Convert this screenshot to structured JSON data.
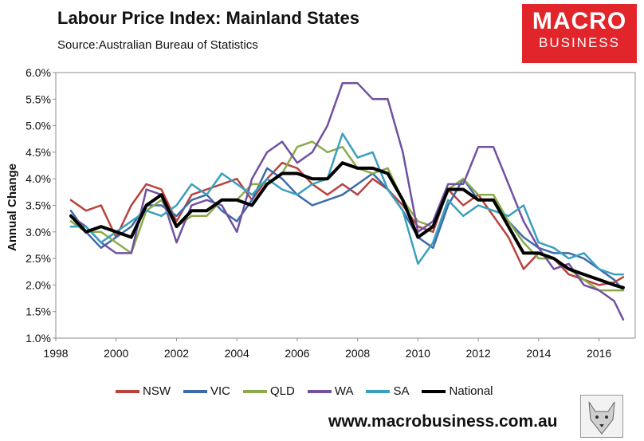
{
  "header": {
    "title": "Labour Price Index: Mainland States",
    "subtitle": "Source:Australian Bureau of Statistics"
  },
  "logo": {
    "line1": "MACRO",
    "line2": "BUSINESS"
  },
  "footer": {
    "url": "www.macrobusiness.com.au"
  },
  "colors": {
    "NSW": "#b7433c",
    "VIC": "#3e6aa8",
    "QLD": "#8bab4a",
    "WA": "#7151a0",
    "SA": "#3aa0bd",
    "National": "#000000"
  },
  "chart_data": {
    "type": "line",
    "title": "Labour Price Index: Mainland States",
    "xlabel": "",
    "ylabel": "Annual Change",
    "xlim": [
      1998,
      2017.2
    ],
    "ylim": [
      1.0,
      6.0
    ],
    "xticks": [
      "1998",
      "2000",
      "2002",
      "2004",
      "2006",
      "2008",
      "2010",
      "2012",
      "2014",
      "2016"
    ],
    "yticks": [
      "1.0%",
      "1.5%",
      "2.0%",
      "2.5%",
      "3.0%",
      "3.5%",
      "4.0%",
      "4.5%",
      "5.0%",
      "5.5%",
      "6.0%"
    ],
    "grid": false,
    "legend_position": "bottom",
    "series": [
      {
        "name": "NSW",
        "points": [
          [
            1998.5,
            3.6
          ],
          [
            1999,
            3.4
          ],
          [
            1999.5,
            3.5
          ],
          [
            2000,
            2.9
          ],
          [
            2000.5,
            3.5
          ],
          [
            2001,
            3.9
          ],
          [
            2001.5,
            3.8
          ],
          [
            2002,
            3.2
          ],
          [
            2002.5,
            3.7
          ],
          [
            2003,
            3.8
          ],
          [
            2003.5,
            3.9
          ],
          [
            2004,
            4.0
          ],
          [
            2004.5,
            3.6
          ],
          [
            2005,
            4.0
          ],
          [
            2005.5,
            4.3
          ],
          [
            2006,
            4.2
          ],
          [
            2006.5,
            3.9
          ],
          [
            2007,
            3.7
          ],
          [
            2007.5,
            3.9
          ],
          [
            2008,
            3.7
          ],
          [
            2008.5,
            4.0
          ],
          [
            2009,
            3.8
          ],
          [
            2009.5,
            3.5
          ],
          [
            2010,
            3.1
          ],
          [
            2010.5,
            3.0
          ],
          [
            2011,
            3.8
          ],
          [
            2011.5,
            3.5
          ],
          [
            2012,
            3.7
          ],
          [
            2012.5,
            3.3
          ],
          [
            2013,
            2.9
          ],
          [
            2013.5,
            2.3
          ],
          [
            2014,
            2.6
          ],
          [
            2014.5,
            2.5
          ],
          [
            2015,
            2.2
          ],
          [
            2015.5,
            2.1
          ],
          [
            2016,
            2.0
          ],
          [
            2016.5,
            2.05
          ],
          [
            2016.8,
            2.15
          ]
        ]
      },
      {
        "name": "VIC",
        "points": [
          [
            1998.5,
            3.4
          ],
          [
            1999,
            3.0
          ],
          [
            1999.5,
            2.7
          ],
          [
            2000,
            2.9
          ],
          [
            2000.5,
            3.1
          ],
          [
            2001,
            3.5
          ],
          [
            2001.5,
            3.5
          ],
          [
            2002,
            3.3
          ],
          [
            2002.5,
            3.6
          ],
          [
            2003,
            3.7
          ],
          [
            2003.5,
            3.4
          ],
          [
            2004,
            3.2
          ],
          [
            2004.5,
            3.6
          ],
          [
            2005,
            4.2
          ],
          [
            2005.5,
            4.0
          ],
          [
            2006,
            3.7
          ],
          [
            2006.5,
            3.5
          ],
          [
            2007,
            3.6
          ],
          [
            2007.5,
            3.7
          ],
          [
            2008,
            3.9
          ],
          [
            2008.5,
            4.1
          ],
          [
            2009,
            3.8
          ],
          [
            2009.5,
            3.4
          ],
          [
            2010,
            2.9
          ],
          [
            2010.5,
            2.7
          ],
          [
            2011,
            3.5
          ],
          [
            2011.5,
            4.0
          ],
          [
            2012,
            3.6
          ],
          [
            2012.5,
            3.6
          ],
          [
            2013,
            3.2
          ],
          [
            2013.5,
            2.9
          ],
          [
            2014,
            2.7
          ],
          [
            2014.5,
            2.6
          ],
          [
            2015,
            2.6
          ],
          [
            2015.5,
            2.5
          ],
          [
            2016,
            2.3
          ],
          [
            2016.5,
            2.1
          ],
          [
            2016.8,
            1.9
          ]
        ]
      },
      {
        "name": "QLD",
        "points": [
          [
            1998.5,
            3.2
          ],
          [
            1999,
            3.0
          ],
          [
            1999.5,
            3.0
          ],
          [
            2000,
            2.8
          ],
          [
            2000.5,
            2.6
          ],
          [
            2001,
            3.4
          ],
          [
            2001.5,
            3.6
          ],
          [
            2002,
            3.1
          ],
          [
            2002.5,
            3.3
          ],
          [
            2003,
            3.3
          ],
          [
            2003.5,
            3.6
          ],
          [
            2004,
            3.6
          ],
          [
            2004.5,
            3.9
          ],
          [
            2005,
            3.9
          ],
          [
            2005.5,
            4.1
          ],
          [
            2006,
            4.6
          ],
          [
            2006.5,
            4.7
          ],
          [
            2007,
            4.5
          ],
          [
            2007.5,
            4.6
          ],
          [
            2008,
            4.2
          ],
          [
            2008.5,
            4.1
          ],
          [
            2009,
            4.2
          ],
          [
            2009.5,
            3.6
          ],
          [
            2010,
            3.2
          ],
          [
            2010.5,
            3.1
          ],
          [
            2011,
            3.8
          ],
          [
            2011.5,
            4.0
          ],
          [
            2012,
            3.7
          ],
          [
            2012.5,
            3.7
          ],
          [
            2013,
            3.2
          ],
          [
            2013.5,
            2.8
          ],
          [
            2014,
            2.5
          ],
          [
            2014.5,
            2.5
          ],
          [
            2015,
            2.3
          ],
          [
            2015.5,
            2.1
          ],
          [
            2016,
            1.9
          ],
          [
            2016.5,
            1.9
          ],
          [
            2016.8,
            1.9
          ]
        ]
      },
      {
        "name": "WA",
        "points": [
          [
            1998.5,
            3.3
          ],
          [
            1999,
            3.1
          ],
          [
            1999.5,
            2.8
          ],
          [
            2000,
            2.6
          ],
          [
            2000.5,
            2.6
          ],
          [
            2001,
            3.8
          ],
          [
            2001.5,
            3.7
          ],
          [
            2002,
            2.8
          ],
          [
            2002.5,
            3.5
          ],
          [
            2003,
            3.6
          ],
          [
            2003.5,
            3.5
          ],
          [
            2004,
            3.0
          ],
          [
            2004.5,
            4.0
          ],
          [
            2005,
            4.5
          ],
          [
            2005.5,
            4.7
          ],
          [
            2006,
            4.3
          ],
          [
            2006.5,
            4.5
          ],
          [
            2007,
            5.0
          ],
          [
            2007.5,
            5.8
          ],
          [
            2008,
            5.8
          ],
          [
            2008.5,
            5.5
          ],
          [
            2009,
            5.5
          ],
          [
            2009.5,
            4.5
          ],
          [
            2010,
            3.0
          ],
          [
            2010.5,
            3.2
          ],
          [
            2011,
            3.9
          ],
          [
            2011.5,
            3.9
          ],
          [
            2012,
            4.6
          ],
          [
            2012.5,
            4.6
          ],
          [
            2013,
            3.9
          ],
          [
            2013.5,
            3.2
          ],
          [
            2014,
            2.7
          ],
          [
            2014.5,
            2.3
          ],
          [
            2015,
            2.4
          ],
          [
            2015.5,
            2.0
          ],
          [
            2016,
            1.9
          ],
          [
            2016.5,
            1.7
          ],
          [
            2016.8,
            1.35
          ]
        ]
      },
      {
        "name": "SA",
        "points": [
          [
            1998.5,
            3.1
          ],
          [
            1999,
            3.1
          ],
          [
            1999.5,
            2.8
          ],
          [
            2000,
            3.0
          ],
          [
            2000.5,
            3.2
          ],
          [
            2001,
            3.4
          ],
          [
            2001.5,
            3.3
          ],
          [
            2002,
            3.5
          ],
          [
            2002.5,
            3.9
          ],
          [
            2003,
            3.7
          ],
          [
            2003.5,
            4.1
          ],
          [
            2004,
            3.9
          ],
          [
            2004.5,
            3.7
          ],
          [
            2005,
            4.0
          ],
          [
            2005.5,
            3.8
          ],
          [
            2006,
            3.7
          ],
          [
            2006.5,
            3.9
          ],
          [
            2007,
            4.0
          ],
          [
            2007.5,
            4.85
          ],
          [
            2008,
            4.4
          ],
          [
            2008.5,
            4.5
          ],
          [
            2009,
            3.8
          ],
          [
            2009.5,
            3.4
          ],
          [
            2010,
            2.4
          ],
          [
            2010.5,
            2.8
          ],
          [
            2011,
            3.6
          ],
          [
            2011.5,
            3.3
          ],
          [
            2012,
            3.5
          ],
          [
            2012.5,
            3.4
          ],
          [
            2013,
            3.3
          ],
          [
            2013.5,
            3.5
          ],
          [
            2014,
            2.8
          ],
          [
            2014.5,
            2.7
          ],
          [
            2015,
            2.5
          ],
          [
            2015.5,
            2.6
          ],
          [
            2016,
            2.3
          ],
          [
            2016.5,
            2.2
          ],
          [
            2016.8,
            2.2
          ]
        ]
      },
      {
        "name": "National",
        "points": [
          [
            1998.5,
            3.3
          ],
          [
            1999,
            3.0
          ],
          [
            1999.5,
            3.1
          ],
          [
            2000,
            3.0
          ],
          [
            2000.5,
            2.9
          ],
          [
            2001,
            3.5
          ],
          [
            2001.5,
            3.7
          ],
          [
            2002,
            3.1
          ],
          [
            2002.5,
            3.4
          ],
          [
            2003,
            3.4
          ],
          [
            2003.5,
            3.6
          ],
          [
            2004,
            3.6
          ],
          [
            2004.5,
            3.5
          ],
          [
            2005,
            3.9
          ],
          [
            2005.5,
            4.1
          ],
          [
            2006,
            4.1
          ],
          [
            2006.5,
            4.0
          ],
          [
            2007,
            4.0
          ],
          [
            2007.5,
            4.3
          ],
          [
            2008,
            4.2
          ],
          [
            2008.5,
            4.2
          ],
          [
            2009,
            4.1
          ],
          [
            2009.5,
            3.6
          ],
          [
            2010,
            2.9
          ],
          [
            2010.5,
            3.1
          ],
          [
            2011,
            3.8
          ],
          [
            2011.5,
            3.8
          ],
          [
            2012,
            3.6
          ],
          [
            2012.5,
            3.6
          ],
          [
            2013,
            3.1
          ],
          [
            2013.5,
            2.6
          ],
          [
            2014,
            2.6
          ],
          [
            2014.5,
            2.5
          ],
          [
            2015,
            2.3
          ],
          [
            2015.5,
            2.2
          ],
          [
            2016,
            2.1
          ],
          [
            2016.5,
            2.0
          ],
          [
            2016.8,
            1.95
          ]
        ]
      }
    ]
  }
}
